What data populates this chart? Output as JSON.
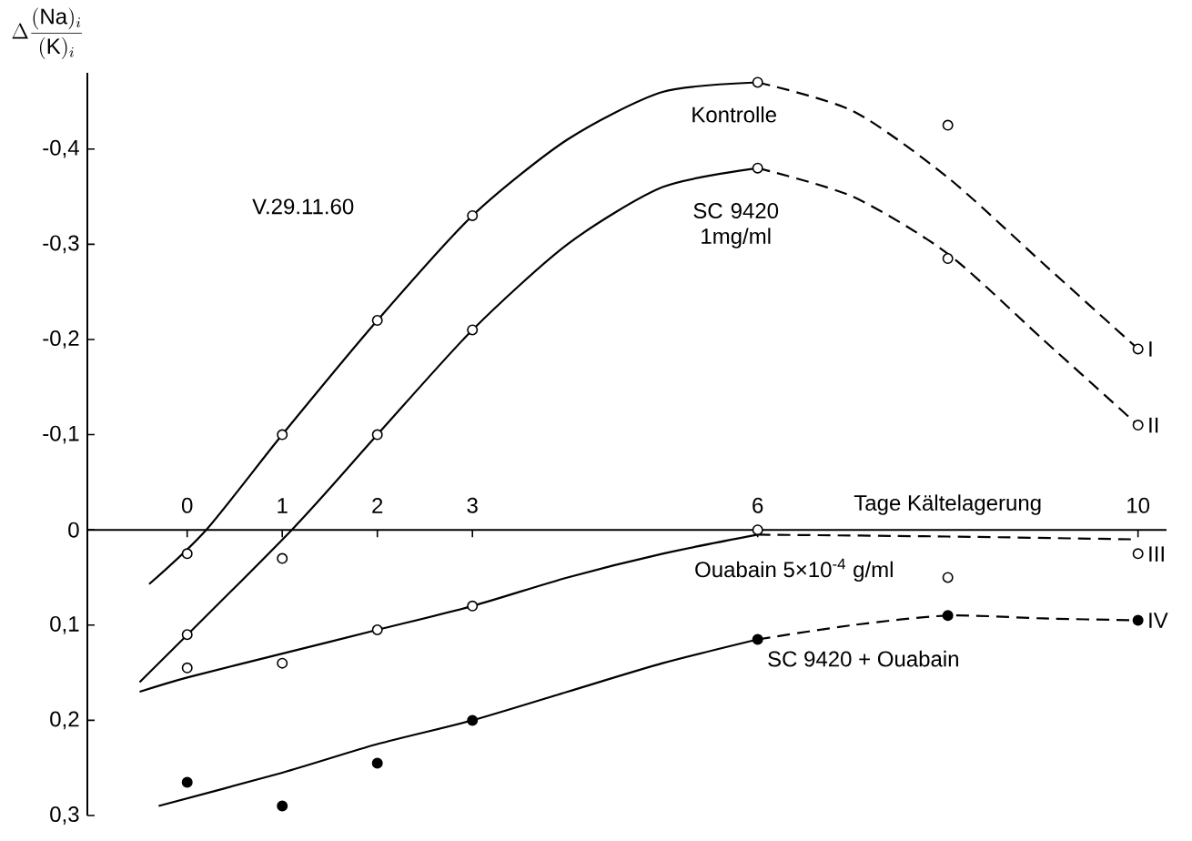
{
  "chart_data": {
    "type": "line",
    "ylabel": "\\Delta\\frac{(\\mathrm{Na})_i}{(\\mathrm{K})_i}",
    "xlabel": "Tage Kältelagerung",
    "annotations": [
      "V.29.11.60"
    ],
    "xlim": [
      -1.05,
      10.3
    ],
    "ylim": [
      0.3,
      -0.48
    ],
    "xticks": [
      0,
      1,
      2,
      3,
      6,
      10
    ],
    "yticks": [
      {
        "value": -0.4,
        "label": "-0,4"
      },
      {
        "value": -0.3,
        "label": "-0,3"
      },
      {
        "value": -0.2,
        "label": "-0,2"
      },
      {
        "value": -0.1,
        "label": "-0,1"
      },
      0,
      {
        "value": 0.1,
        "label": "0,1"
      },
      {
        "value": 0.2,
        "label": "0,2"
      },
      {
        "value": 0.3,
        "label": "0,3"
      }
    ],
    "series": [
      {
        "name": "Kontrolle",
        "color": "#000000",
        "line_style": "solid",
        "marker": "none",
        "x": [
          -0.4,
          0.2,
          1,
          2,
          3,
          4,
          5,
          6
        ],
        "values": [
          0.057,
          0,
          -0.1,
          -0.22,
          -0.33,
          -0.41,
          -0.46,
          -0.47
        ]
      },
      {
        "name": "SC 9420 1mg/ml",
        "color": "#000000",
        "line_style": "solid",
        "marker": "none",
        "x": [
          -0.5,
          1.1,
          2,
          3,
          4,
          5,
          6
        ],
        "values": [
          0.16,
          0,
          -0.1,
          -0.21,
          -0.3,
          -0.36,
          -0.38
        ]
      },
      {
        "name": "Ouabain 5×10$^{-4}$ g/ml",
        "color": "#000000",
        "line_style": "solid",
        "marker": "none",
        "x": [
          -0.5,
          0,
          1,
          2,
          3,
          4,
          5,
          6
        ],
        "values": [
          0.17,
          0.155,
          0.13,
          0.105,
          0.08,
          0.05,
          0.025,
          0.005
        ]
      },
      {
        "name": "SC 9420 + Ouabain",
        "color": "#000000",
        "line_style": "solid",
        "marker": "none",
        "x": [
          -0.3,
          1,
          2,
          3,
          4,
          5,
          6
        ],
        "values": [
          0.29,
          0.255,
          0.225,
          0.2,
          0.17,
          0.14,
          0.115
        ]
      },
      {
        "name": "I",
        "color": "#000000",
        "line_style": "dashed",
        "marker": "none",
        "x": [
          6,
          7,
          8,
          9,
          10
        ],
        "values": [
          -0.47,
          -0.44,
          -0.37,
          -0.28,
          -0.19
        ]
      },
      {
        "name": "II",
        "color": "#000000",
        "line_style": "dashed",
        "marker": "none",
        "x": [
          6,
          7,
          8,
          9,
          10
        ],
        "values": [
          -0.38,
          -0.35,
          -0.29,
          -0.2,
          -0.11
        ]
      },
      {
        "name": "III",
        "color": "#000000",
        "line_style": "dashed",
        "marker": "none",
        "x": [
          6,
          8,
          10
        ],
        "values": [
          0.005,
          0.007,
          0.01
        ]
      },
      {
        "name": "IV",
        "color": "#000000",
        "line_style": "dashed",
        "marker": "none",
        "x": [
          6,
          7,
          8,
          9,
          10
        ],
        "values": [
          0.115,
          0.1,
          0.09,
          0.093,
          0.095
        ]
      },
      {
        "type": "scatter",
        "color": "#ffffff",
        "marker": "circle",
        "x": [
          0,
          1,
          2,
          3,
          6,
          8,
          10
        ],
        "values": [
          0.025,
          -0.1,
          -0.22,
          -0.33,
          -0.47,
          -0.425,
          -0.19
        ]
      },
      {
        "type": "scatter",
        "color": "#ffffff",
        "marker": "circle",
        "x": [
          0,
          1,
          2,
          3,
          6,
          8,
          10
        ],
        "values": [
          0.11,
          0.03,
          -0.1,
          -0.21,
          -0.38,
          -0.285,
          -0.11
        ]
      },
      {
        "type": "scatter",
        "color": "#ffffff",
        "marker": "circle",
        "x": [
          0,
          1,
          2,
          3,
          6,
          8,
          10
        ],
        "values": [
          0.145,
          0.14,
          0.105,
          0.08,
          0,
          0.05,
          0.025
        ]
      },
      {
        "type": "scatter",
        "color": "#000000",
        "marker": "circle",
        "x": [
          0,
          1,
          2,
          3,
          6,
          8,
          10
        ],
        "values": [
          0.265,
          0.29,
          0.245,
          0.2,
          0.115,
          0.09,
          0.095
        ]
      }
    ]
  }
}
